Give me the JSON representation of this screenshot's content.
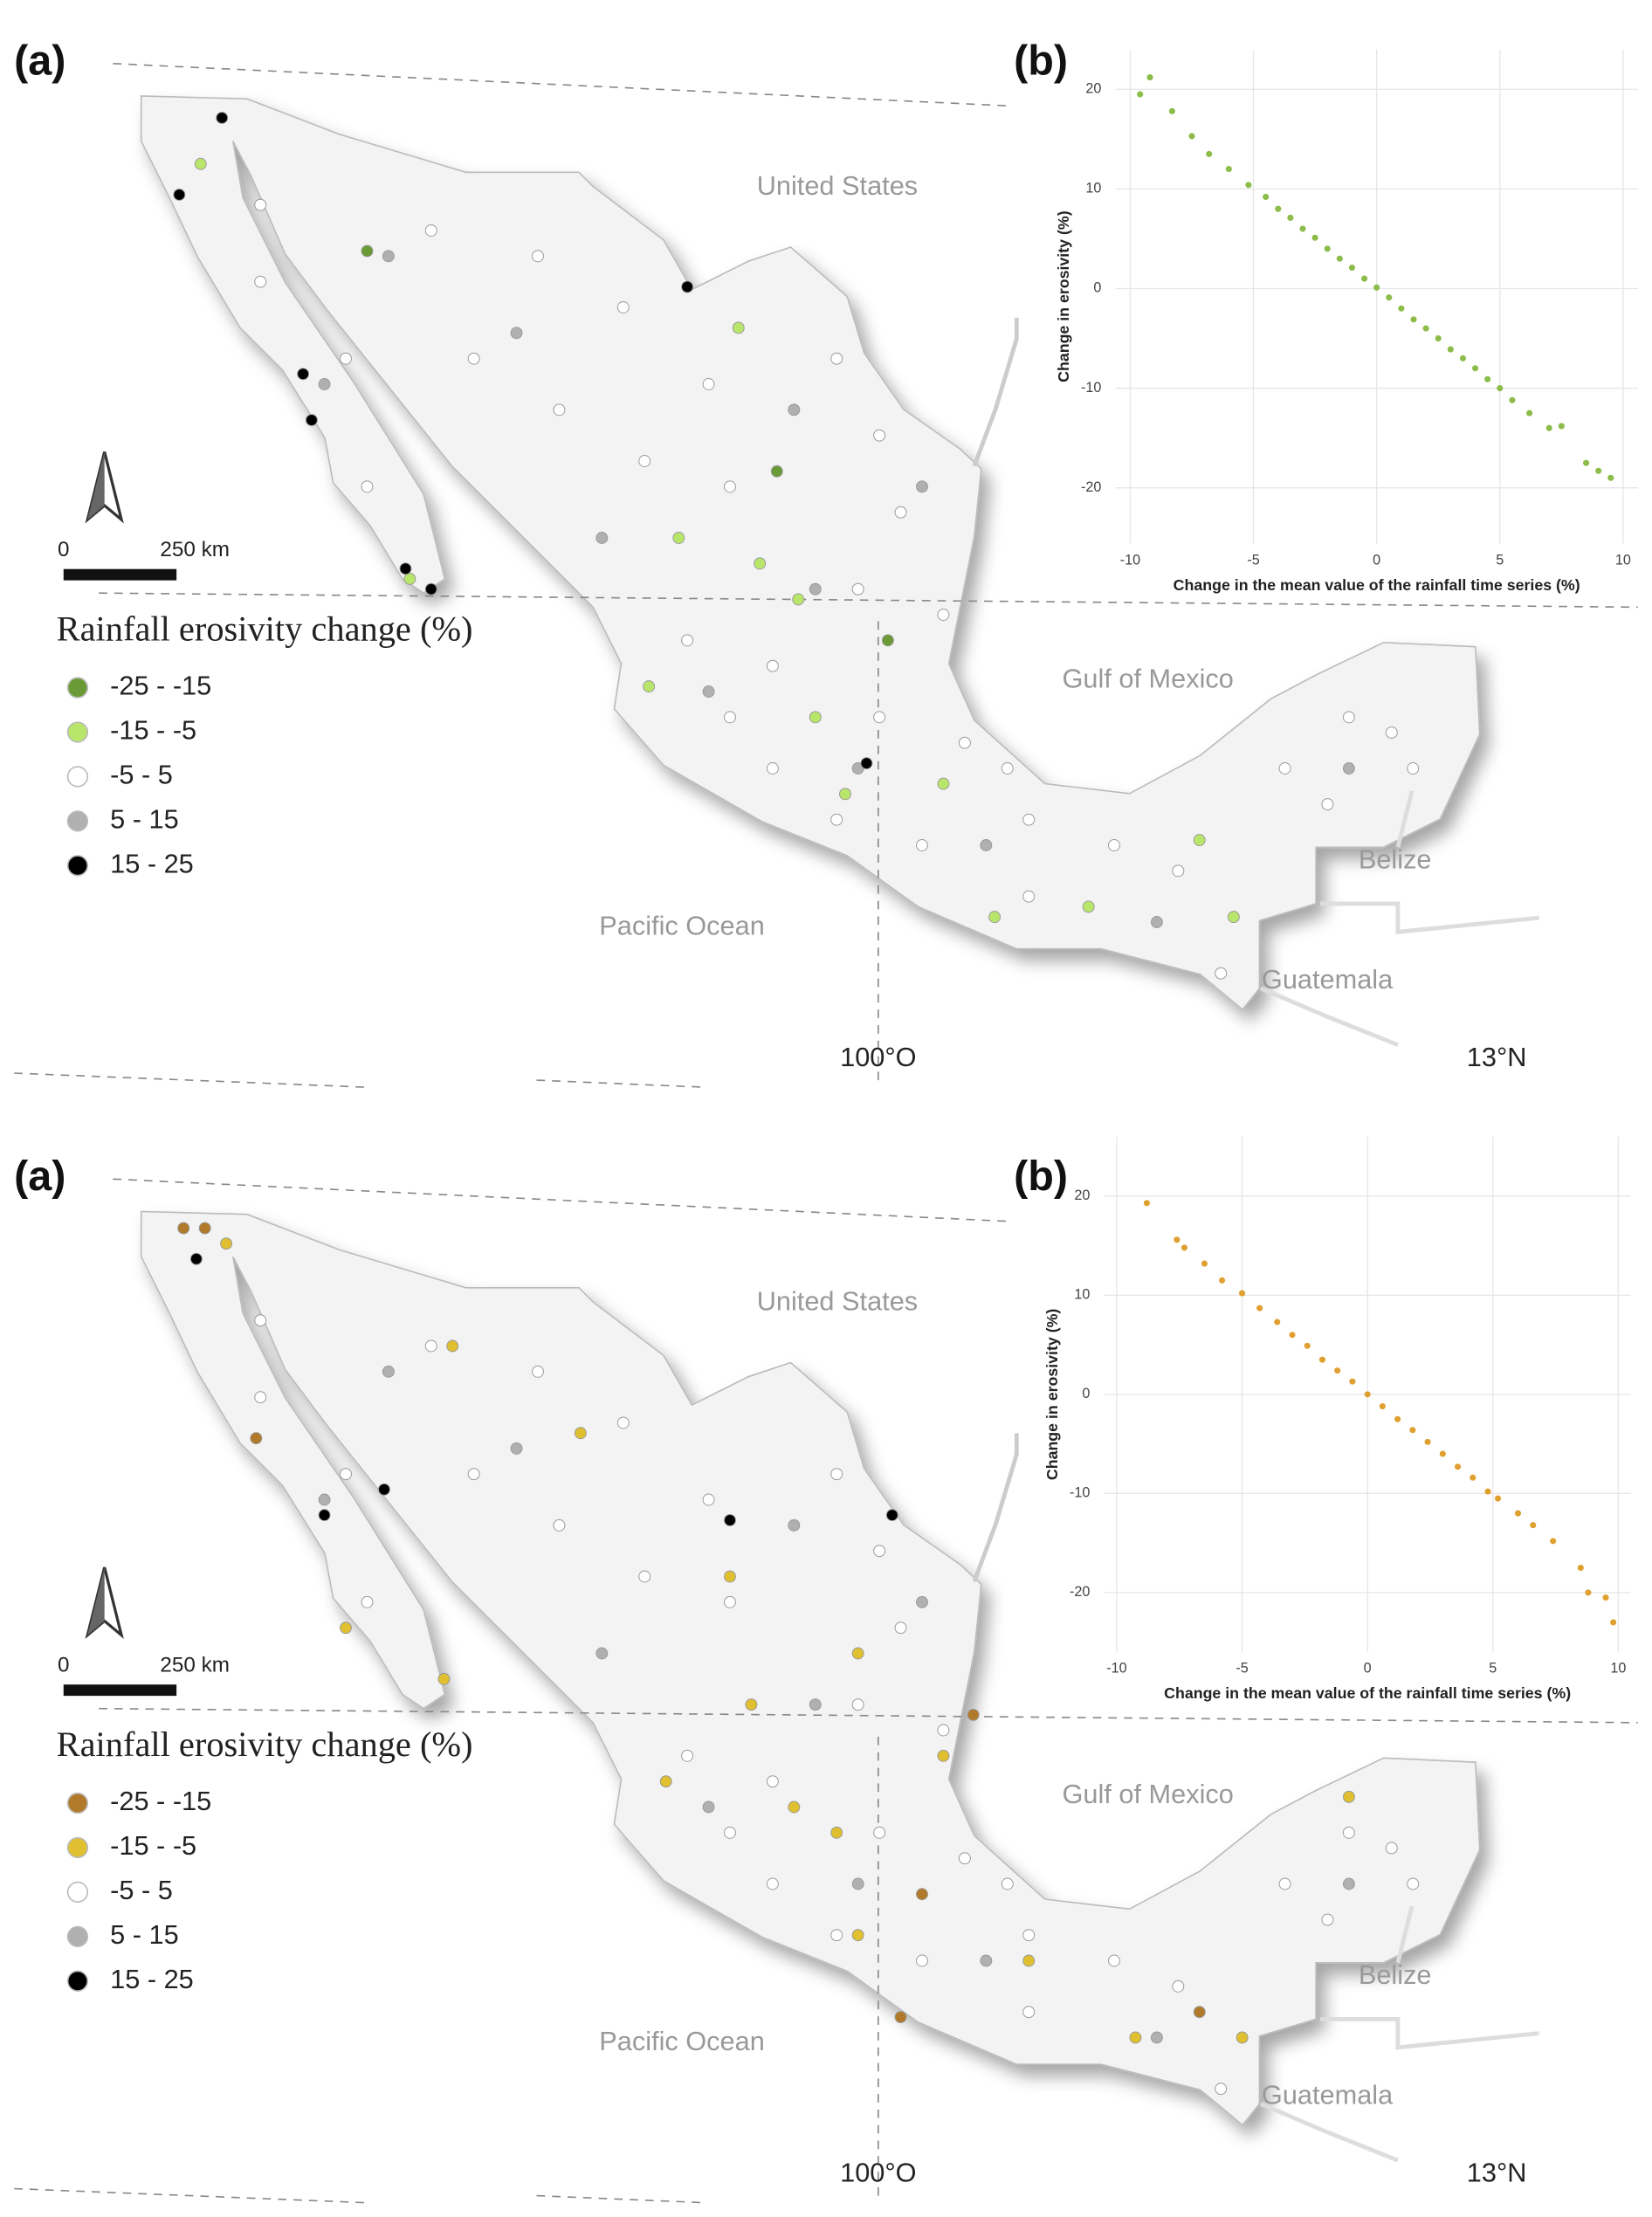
{
  "chart_data": [
    {
      "type": "map",
      "panel_label": "(a)",
      "legend_title": "Rainfall erosivity change (%)",
      "place_labels": [
        "United States",
        "Gulf of Mexico",
        "Pacific Ocean",
        "Belize",
        "Guatemala"
      ],
      "graticule_labels": [
        "100°O",
        "13°N"
      ],
      "scale_bar_labels": [
        "0",
        "250 km"
      ],
      "xlim": [
        -120.6,
        -81.9
      ],
      "ylim": [
        13,
        34.5
      ],
      "series": [
        {
          "name": "-25 - -15",
          "color": "#6a9a35",
          "x": [
            -112.0,
            -102.4,
            -99.8
          ],
          "y": [
            29.6,
            25.3,
            22.0
          ]
        },
        {
          "name": "-15 - -5",
          "color": "#b8e66a",
          "x": [
            -115.9,
            -103.3,
            -111.0,
            -104.7,
            -102.8,
            -101.9,
            -105.4,
            -100.8,
            -97.3,
            -95.1,
            -91.7,
            -92.5,
            -101.5,
            -98.5
          ],
          "y": [
            31.3,
            28.1,
            23.2,
            24.0,
            23.5,
            22.8,
            21.1,
            19.0,
            16.6,
            16.8,
            16.6,
            18.1,
            20.5,
            19.2
          ]
        },
        {
          "name": "-5 - 5",
          "color": "#ffffff",
          "x": [
            -114.5,
            -110.5,
            -108.0,
            -106.0,
            -104.0,
            -101.0,
            -100.0,
            -107.5,
            -105.5,
            -103.5,
            -99.5,
            -98.5,
            -100.5,
            -104.5,
            -102.5,
            -103.5,
            -100.0,
            -98.0,
            -97.0,
            -96.5,
            -99.0,
            -101.0,
            -102.5,
            -94.5,
            -93.0,
            -90.5,
            -89.0,
            -88.0,
            -87.5,
            -89.5,
            -112.0,
            -112.5,
            -114.5,
            -109.5,
            -96.5,
            -92.0
          ],
          "y": [
            30.5,
            30.0,
            29.5,
            28.5,
            27.0,
            27.5,
            26.0,
            26.5,
            25.5,
            25.0,
            24.5,
            22.5,
            23.0,
            22.0,
            21.5,
            20.5,
            20.5,
            20.0,
            19.5,
            18.5,
            18.0,
            18.5,
            19.5,
            18.0,
            17.5,
            19.5,
            20.5,
            20.2,
            19.5,
            18.8,
            25.0,
            27.5,
            29.0,
            27.5,
            17.0,
            15.5
          ]
        },
        {
          "name": "5 - 15",
          "color": "#b0b0b0",
          "x": [
            -111.5,
            -108.5,
            -102.0,
            -99.0,
            -101.5,
            -104.0,
            -100.5,
            -97.5,
            -93.5,
            -89.0,
            -106.5,
            -113.0
          ],
          "y": [
            29.5,
            28.0,
            26.5,
            25.0,
            23.0,
            21.0,
            19.5,
            18.0,
            16.5,
            19.5,
            24.0,
            27.0
          ]
        },
        {
          "name": "15 - 25",
          "color": "#000000",
          "x": [
            -115.4,
            -116.4,
            -104.5,
            -113.5,
            -113.3,
            -111.1,
            -110.5,
            -100.3
          ],
          "y": [
            32.2,
            30.7,
            28.9,
            27.2,
            26.3,
            23.4,
            23.0,
            19.6
          ]
        }
      ]
    },
    {
      "type": "scatter",
      "panel_label": "(b)",
      "xlabel": "Change in the mean value of the rainfall time series (%)",
      "ylabel": "Change in erosivity (%)",
      "color": "#8cbc4a",
      "grid": true,
      "xlim": [
        -10.6,
        10.6
      ],
      "ylim": [
        -25.6,
        24
      ],
      "xticks": [
        -10,
        -5,
        0,
        5,
        10
      ],
      "yticks": [
        -20,
        -10,
        0,
        10,
        20
      ],
      "x": [
        -9.2,
        -9.6,
        -8.3,
        -7.5,
        -6.8,
        -6.0,
        -5.2,
        -4.5,
        -4.0,
        -3.5,
        -3.0,
        -2.5,
        -2.0,
        -1.5,
        -1.0,
        -0.5,
        0,
        0.5,
        1.0,
        1.5,
        2.0,
        2.5,
        3.0,
        3.5,
        4.0,
        4.5,
        5.0,
        5.5,
        6.2,
        7.0,
        7.5,
        8.5,
        9.0,
        9.5
      ],
      "y": [
        21.2,
        19.5,
        17.8,
        15.3,
        13.5,
        12.0,
        10.4,
        9.2,
        8.0,
        7.1,
        6.0,
        5.1,
        4.0,
        3.0,
        2.1,
        1.0,
        0.1,
        -0.9,
        -2.0,
        -3.1,
        -4.0,
        -5.0,
        -6.1,
        -7.0,
        -8.0,
        -9.1,
        -10.0,
        -11.2,
        -12.5,
        -14.0,
        -13.8,
        -17.5,
        -18.3,
        -19.0
      ]
    },
    {
      "type": "map",
      "panel_label": "(a)",
      "legend_title": "Rainfall erosivity change (%)",
      "place_labels": [
        "United States",
        "Gulf of Mexico",
        "Pacific Ocean",
        "Belize",
        "Guatemala"
      ],
      "graticule_labels": [
        "100°O",
        "13°N"
      ],
      "scale_bar_labels": [
        "0",
        "250 km"
      ],
      "xlim": [
        -120.6,
        -81.9
      ],
      "ylim": [
        13,
        34.5
      ],
      "series": [
        {
          "name": "-25 - -15",
          "color": "#b07a2a",
          "x": [
            -116.3,
            -115.8,
            -114.6,
            -99.0,
            -97.8,
            -92.5,
            -99.5
          ],
          "y": [
            32.3,
            32.3,
            28.2,
            19.3,
            22.8,
            17.0,
            16.9
          ]
        },
        {
          "name": "-15 - -5",
          "color": "#e0c030",
          "x": [
            -115.3,
            -110.0,
            -107.0,
            -103.5,
            -112.5,
            -110.2,
            -100.5,
            -103.0,
            -105.0,
            -102.0,
            -101.0,
            -98.5,
            -100.5,
            -96.5,
            -94.0,
            -91.5,
            -89.0
          ],
          "y": [
            32.0,
            30.0,
            28.3,
            25.5,
            24.5,
            23.5,
            24.0,
            23.0,
            21.5,
            21.0,
            20.5,
            22.0,
            18.5,
            18.0,
            16.5,
            16.5,
            21.2
          ]
        },
        {
          "name": "-5 - 5",
          "color": "#ffffff",
          "x": [
            -114.5,
            -110.5,
            -108.0,
            -106.0,
            -104.0,
            -101.0,
            -100.0,
            -107.5,
            -105.5,
            -103.5,
            -99.5,
            -98.5,
            -100.5,
            -104.5,
            -102.5,
            -103.5,
            -100.0,
            -98.0,
            -97.0,
            -96.5,
            -99.0,
            -101.0,
            -102.5,
            -94.5,
            -93.0,
            -90.5,
            -89.0,
            -88.0,
            -87.5,
            -89.5,
            -112.0,
            -112.5,
            -114.5,
            -109.5,
            -96.5,
            -92.0
          ],
          "y": [
            30.5,
            30.0,
            29.5,
            28.5,
            27.0,
            27.5,
            26.0,
            26.5,
            25.5,
            25.0,
            24.5,
            22.5,
            23.0,
            22.0,
            21.5,
            20.5,
            20.5,
            20.0,
            19.5,
            18.5,
            18.0,
            18.5,
            19.5,
            18.0,
            17.5,
            19.5,
            20.5,
            20.2,
            19.5,
            18.8,
            25.0,
            27.5,
            29.0,
            27.5,
            17.0,
            15.5
          ]
        },
        {
          "name": "5 - 15",
          "color": "#b0b0b0",
          "x": [
            -111.5,
            -108.5,
            -102.0,
            -99.0,
            -101.5,
            -104.0,
            -100.5,
            -97.5,
            -93.5,
            -89.0,
            -106.5,
            -113.0
          ],
          "y": [
            29.5,
            28.0,
            26.5,
            25.0,
            23.0,
            21.0,
            19.5,
            18.0,
            16.5,
            19.5,
            24.0,
            27.0
          ]
        },
        {
          "name": "15 - 25",
          "color": "#000000",
          "x": [
            -116.0,
            -113.0,
            -111.6,
            -103.5,
            -99.7
          ],
          "y": [
            31.7,
            26.7,
            27.2,
            26.6,
            26.7
          ]
        }
      ]
    },
    {
      "type": "scatter",
      "panel_label": "(b)",
      "xlabel": "Change in the mean value of the rainfall time series (%)",
      "ylabel": "Change in erosivity (%)",
      "color": "#e0a030",
      "grid": true,
      "xlim": [
        -10.5,
        10.5
      ],
      "ylim": [
        -26,
        26
      ],
      "xticks": [
        -10,
        -5,
        0,
        5,
        10
      ],
      "yticks": [
        -20,
        -10,
        0,
        10,
        20
      ],
      "x": [
        -8.8,
        -7.6,
        -7.3,
        -6.5,
        -5.8,
        -5.0,
        -4.3,
        -3.6,
        -3.0,
        -2.4,
        -1.8,
        -1.2,
        -0.6,
        0,
        0.6,
        1.2,
        1.8,
        2.4,
        3.0,
        3.6,
        4.2,
        4.8,
        5.2,
        6.0,
        6.6,
        7.4,
        8.5,
        8.8,
        9.5,
        9.8
      ],
      "y": [
        19.3,
        15.6,
        14.8,
        13.2,
        11.5,
        10.2,
        8.7,
        7.3,
        6.0,
        4.9,
        3.5,
        2.4,
        1.3,
        0,
        -1.2,
        -2.5,
        -3.6,
        -4.8,
        -6.0,
        -7.3,
        -8.4,
        -9.8,
        -10.5,
        -12.0,
        -13.2,
        -14.8,
        -17.5,
        -20.0,
        -20.5,
        -23.0
      ]
    }
  ]
}
